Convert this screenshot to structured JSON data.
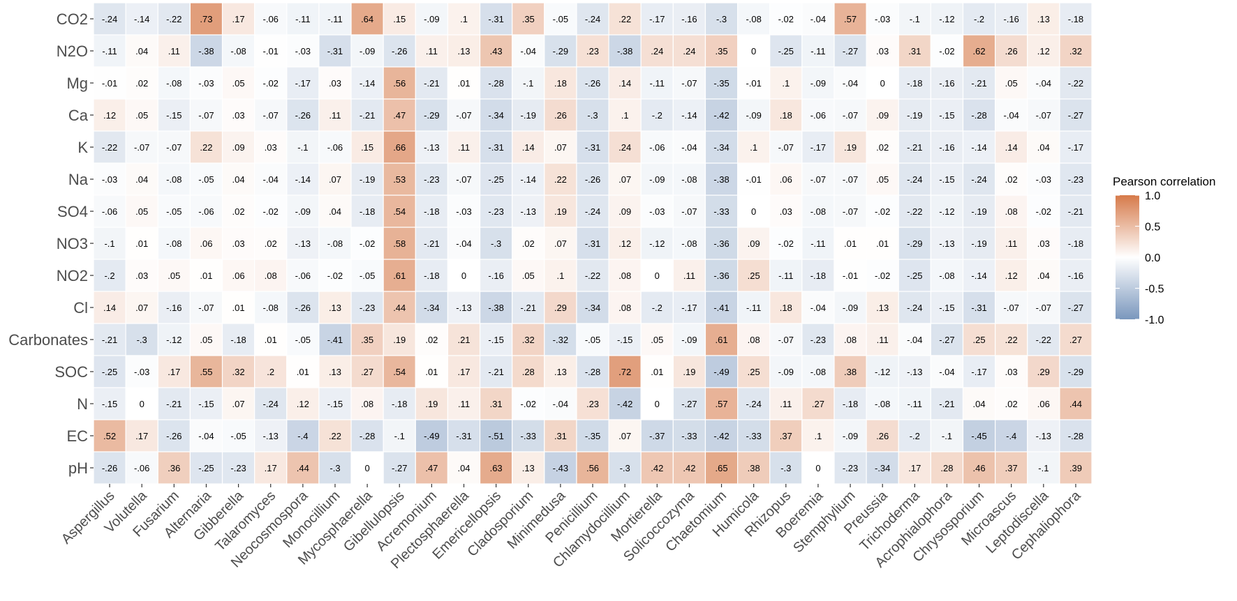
{
  "chart_data": {
    "type": "heatmap",
    "rows": [
      "CO2",
      "N2O",
      "Mg",
      "Ca",
      "K",
      "Na",
      "SO4",
      "NO3",
      "NO2",
      "Cl",
      "Carbonates",
      "SOC",
      "N",
      "EC",
      "pH"
    ],
    "columns": [
      "Aspergillus",
      "Volutella",
      "Fusarium",
      "Alternaria",
      "Gibberella",
      "Talaromyces",
      "Neocosmospora",
      "Monocillium",
      "Mycosphaerella",
      "Gibellulopsis",
      "Acremonium",
      "Plectosphaerella",
      "Emericellopsis",
      "Cladosporium",
      "Minimedusa",
      "Penicillium",
      "Chlamydocillium",
      "Mortierella",
      "Solicoccozyma",
      "Chaetomium",
      "Humicola",
      "Rhizopus",
      "Boeremia",
      "Stemphylium",
      "Preussia",
      "Trichoderma",
      "Acrophialophora",
      "Chrysosporium",
      "Microascus",
      "Leptodiscella",
      "Cephaliophora"
    ],
    "values": [
      [
        -0.24,
        -0.14,
        -0.22,
        0.73,
        0.17,
        -0.06,
        -0.11,
        -0.11,
        0.64,
        0.15,
        -0.09,
        0.1,
        -0.31,
        0.35,
        -0.05,
        -0.24,
        0.22,
        -0.17,
        -0.16,
        -0.3,
        -0.08,
        -0.02,
        -0.04,
        0.57,
        -0.03,
        -0.1,
        -0.12,
        -0.2,
        -0.16,
        0.13,
        -0.18
      ],
      [
        -0.11,
        0.04,
        0.11,
        -0.38,
        -0.08,
        -0.01,
        -0.03,
        -0.31,
        -0.09,
        -0.26,
        0.11,
        0.13,
        0.43,
        -0.04,
        -0.29,
        0.23,
        -0.38,
        0.24,
        0.24,
        0.35,
        0,
        -0.25,
        -0.11,
        -0.27,
        0.03,
        0.31,
        -0.02,
        0.62,
        0.26,
        0.12,
        0.32
      ],
      [
        -0.01,
        0.02,
        -0.08,
        -0.03,
        0.05,
        -0.02,
        -0.17,
        0.03,
        -0.14,
        0.56,
        -0.21,
        0.01,
        -0.28,
        -0.1,
        0.18,
        -0.26,
        0.14,
        -0.11,
        -0.07,
        -0.35,
        -0.01,
        0.1,
        -0.09,
        -0.04,
        0,
        -0.18,
        -0.16,
        -0.21,
        0.05,
        -0.04,
        -0.22
      ],
      [
        0.12,
        0.05,
        -0.15,
        -0.07,
        0.03,
        -0.07,
        -0.26,
        0.11,
        -0.21,
        0.47,
        -0.29,
        -0.07,
        -0.34,
        -0.19,
        0.26,
        -0.3,
        0.1,
        -0.2,
        -0.14,
        -0.42,
        -0.09,
        0.18,
        -0.06,
        -0.07,
        0.09,
        -0.19,
        -0.15,
        -0.28,
        -0.04,
        -0.07,
        -0.27
      ],
      [
        -0.22,
        -0.07,
        -0.07,
        0.22,
        0.09,
        0.03,
        -0.1,
        -0.06,
        0.15,
        0.66,
        -0.13,
        0.11,
        -0.31,
        0.14,
        0.07,
        -0.31,
        0.24,
        -0.06,
        -0.04,
        -0.34,
        0.1,
        -0.07,
        -0.17,
        0.19,
        0.02,
        -0.21,
        -0.16,
        -0.14,
        0.14,
        0.04,
        -0.17
      ],
      [
        -0.03,
        0.04,
        -0.08,
        -0.05,
        0.04,
        -0.04,
        -0.14,
        0.07,
        -0.19,
        0.53,
        -0.23,
        -0.07,
        -0.25,
        -0.14,
        0.22,
        -0.26,
        0.07,
        -0.09,
        -0.08,
        -0.38,
        -0.01,
        0.06,
        -0.07,
        -0.07,
        0.05,
        -0.24,
        -0.15,
        -0.24,
        0.02,
        -0.03,
        -0.23
      ],
      [
        -0.06,
        0.05,
        -0.05,
        -0.06,
        0.02,
        -0.02,
        -0.09,
        0.04,
        -0.18,
        0.54,
        -0.18,
        -0.03,
        -0.23,
        -0.13,
        0.19,
        -0.24,
        0.09,
        -0.03,
        -0.07,
        -0.33,
        0,
        0.03,
        -0.08,
        -0.07,
        -0.02,
        -0.22,
        -0.12,
        -0.19,
        0.08,
        -0.02,
        -0.21
      ],
      [
        -0.1,
        0.01,
        -0.08,
        0.06,
        0.03,
        0.02,
        -0.13,
        -0.08,
        -0.02,
        0.58,
        -0.21,
        -0.04,
        -0.3,
        0.02,
        0.07,
        -0.31,
        0.12,
        -0.12,
        -0.08,
        -0.36,
        0.09,
        -0.02,
        -0.11,
        0.01,
        0.01,
        -0.29,
        -0.13,
        -0.19,
        0.11,
        0.03,
        -0.18
      ],
      [
        -0.2,
        0.03,
        0.05,
        0.01,
        0.06,
        0.08,
        -0.06,
        -0.02,
        -0.05,
        0.61,
        -0.18,
        0,
        -0.16,
        0.05,
        0.1,
        -0.22,
        0.08,
        0,
        0.11,
        -0.36,
        0.25,
        -0.11,
        -0.18,
        -0.01,
        -0.02,
        -0.25,
        -0.08,
        -0.14,
        0.12,
        0.04,
        -0.16
      ],
      [
        0.14,
        0.07,
        -0.16,
        -0.07,
        0.01,
        -0.08,
        -0.26,
        0.13,
        -0.23,
        0.44,
        -0.34,
        -0.13,
        -0.38,
        -0.21,
        0.29,
        -0.34,
        0.08,
        -0.2,
        -0.17,
        -0.41,
        -0.11,
        0.18,
        -0.04,
        -0.09,
        0.13,
        -0.24,
        -0.15,
        -0.31,
        -0.07,
        -0.07,
        -0.27
      ],
      [
        -0.21,
        -0.3,
        -0.12,
        0.05,
        -0.18,
        0.01,
        -0.05,
        -0.41,
        0.35,
        0.19,
        0.02,
        0.21,
        -0.15,
        0.32,
        -0.32,
        -0.05,
        -0.15,
        0.05,
        -0.09,
        0.61,
        0.08,
        -0.07,
        -0.23,
        0.08,
        0.11,
        -0.04,
        -0.27,
        0.25,
        0.22,
        -0.22,
        0.27
      ],
      [
        -0.25,
        -0.03,
        0.17,
        0.55,
        0.32,
        0.2,
        0.01,
        0.13,
        0.27,
        0.54,
        0.01,
        0.17,
        -0.21,
        0.28,
        0.13,
        -0.28,
        0.72,
        0.01,
        0.19,
        -0.49,
        0.25,
        -0.09,
        -0.08,
        0.38,
        -0.12,
        -0.13,
        -0.04,
        -0.17,
        0.03,
        0.29,
        -0.29
      ],
      [
        -0.15,
        0,
        -0.21,
        -0.15,
        0.07,
        -0.24,
        0.12,
        -0.15,
        0.08,
        -0.18,
        0.19,
        0.11,
        0.31,
        -0.02,
        -0.04,
        0.23,
        -0.42,
        0,
        -0.27,
        0.57,
        -0.24,
        0.11,
        0.27,
        -0.18,
        -0.08,
        -0.11,
        -0.21,
        0.04,
        0.02,
        0.06,
        0.44
      ],
      [
        0.52,
        0.17,
        -0.26,
        -0.04,
        -0.05,
        -0.13,
        -0.4,
        0.22,
        -0.28,
        -0.1,
        -0.49,
        -0.31,
        -0.51,
        -0.33,
        0.31,
        -0.35,
        0.07,
        -0.37,
        -0.33,
        -0.42,
        -0.33,
        0.37,
        0.1,
        -0.09,
        0.26,
        -0.2,
        -0.1,
        -0.45,
        -0.4,
        -0.13,
        -0.28
      ],
      [
        -0.26,
        -0.06,
        0.36,
        -0.25,
        -0.23,
        0.17,
        0.44,
        -0.3,
        0,
        -0.27,
        0.47,
        0.04,
        0.63,
        0.13,
        -0.43,
        0.56,
        -0.3,
        0.42,
        0.42,
        0.65,
        0.38,
        -0.3,
        0,
        -0.23,
        -0.34,
        0.17,
        0.28,
        0.46,
        0.37,
        -0.1,
        0.39
      ]
    ],
    "color_scale": {
      "low": "#7a97bd",
      "mid": "#ffffff",
      "high": "#d67a4a",
      "limits": [
        -1.0,
        1.0
      ]
    },
    "legend": {
      "title": "Pearson correlation",
      "ticks": [
        1.0,
        0.5,
        0.0,
        -0.5,
        -1.0
      ],
      "tick_labels": [
        "1.0",
        "0.5",
        "0.0",
        "-0.5",
        "-1.0"
      ],
      "placement": "right"
    }
  }
}
